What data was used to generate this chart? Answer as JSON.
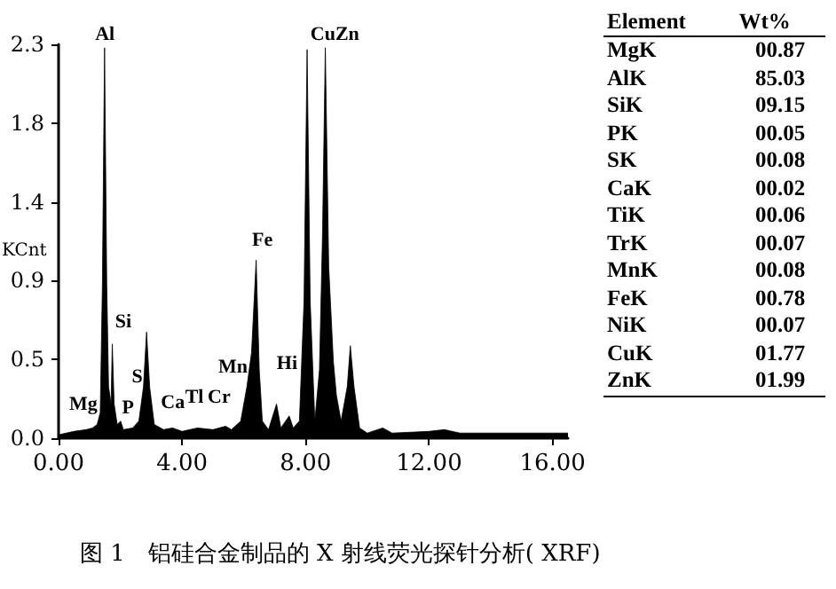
{
  "chart_data": [
    {
      "type": "area",
      "title": "图 1　铝硅合金制品的 X 射线荧光探针分析( XRF)",
      "ylabel": "KCnt",
      "xlim": [
        0,
        16.5
      ],
      "ylim": [
        0,
        2.3
      ],
      "xticks": [
        {
          "value": 0,
          "label": "0.00"
        },
        {
          "value": 4,
          "label": "4.00"
        },
        {
          "value": 8,
          "label": "8.00"
        },
        {
          "value": 12,
          "label": "12.00"
        },
        {
          "value": 16,
          "label": "16.00"
        }
      ],
      "yticks": [
        {
          "value": 0,
          "label": "0.0"
        },
        {
          "value": 0.46,
          "label": "0.5"
        },
        {
          "value": 0.92,
          "label": "0.9"
        },
        {
          "value": 1.38,
          "label": "1.4"
        },
        {
          "value": 1.84,
          "label": "1.8"
        },
        {
          "value": 2.3,
          "label": "2.3"
        }
      ],
      "series": [
        {
          "color": "#000000",
          "x": [
            0,
            0.5,
            0.9,
            1.1,
            1.25,
            1.35,
            1.42,
            1.49,
            1.56,
            1.62,
            1.7,
            1.74,
            1.8,
            1.9,
            2.01,
            2.1,
            2.4,
            2.6,
            2.75,
            2.85,
            2.95,
            3.1,
            3.4,
            3.69,
            4.0,
            4.5,
            5.0,
            5.41,
            5.6,
            5.9,
            6.1,
            6.25,
            6.4,
            6.5,
            6.6,
            6.8,
            7.06,
            7.2,
            7.47,
            7.6,
            7.8,
            7.95,
            8.05,
            8.15,
            8.3,
            8.45,
            8.55,
            8.64,
            8.75,
            8.9,
            9.0,
            9.15,
            9.35,
            9.45,
            9.57,
            9.75,
            10.0,
            10.5,
            10.8,
            12,
            12.5,
            13,
            14,
            15,
            16,
            16.5
          ],
          "values": [
            0.02,
            0.04,
            0.05,
            0.06,
            0.08,
            0.15,
            0.9,
            2.28,
            0.9,
            0.3,
            0.2,
            0.55,
            0.2,
            0.08,
            0.1,
            0.05,
            0.06,
            0.1,
            0.3,
            0.62,
            0.3,
            0.08,
            0.05,
            0.06,
            0.04,
            0.06,
            0.05,
            0.07,
            0.05,
            0.1,
            0.3,
            0.5,
            1.04,
            0.4,
            0.1,
            0.05,
            0.2,
            0.06,
            0.13,
            0.06,
            0.1,
            0.8,
            2.27,
            0.8,
            0.1,
            0.4,
            1.2,
            2.28,
            1.0,
            0.45,
            0.25,
            0.1,
            0.3,
            0.54,
            0.3,
            0.06,
            0.03,
            0.06,
            0.03,
            0.04,
            0.05,
            0.03,
            0.03,
            0.03,
            0.03,
            0.03
          ]
        }
      ],
      "annotations": [
        "Al",
        "CuZn",
        "Fe",
        "Si",
        "S",
        "Mg",
        "P",
        "Ca",
        "Tl",
        "Cr",
        "Mn",
        "Hi"
      ]
    },
    {
      "type": "other",
      "xlabel": "Element",
      "ylabel": "Wt%",
      "categories": [
        "MgK",
        "AlK",
        "SiK",
        "PK",
        "SK",
        "CaK",
        "TiK",
        "TrK",
        "MnK",
        "FeK",
        "NiK",
        "CuK",
        "ZnK"
      ],
      "values": [
        0.87,
        85.03,
        9.15,
        0.05,
        0.08,
        0.02,
        0.06,
        0.07,
        0.08,
        0.78,
        0.07,
        1.77,
        1.99
      ],
      "value_labels": [
        "00.87",
        "85.03",
        "09.15",
        "00.05",
        "00.08",
        "00.02",
        "00.06",
        "00.07",
        "00.08",
        "00.78",
        "00.07",
        "01.77",
        "01.99"
      ]
    }
  ]
}
